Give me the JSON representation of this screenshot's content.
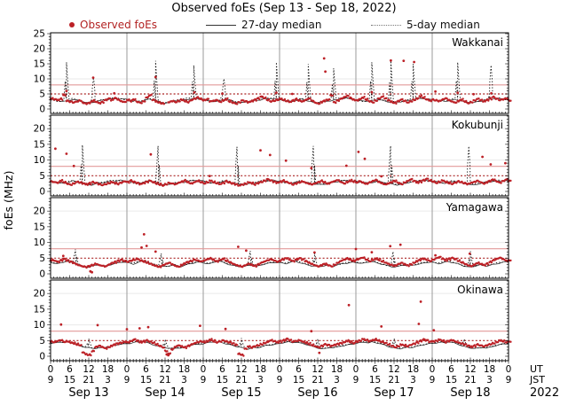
{
  "title": "Observed foEs (Sep 13 - Sep 18, 2022)",
  "ylabel": "foEs (MHz)",
  "legend": {
    "observed": "Observed foEs",
    "median27": "27-day median",
    "median5": "5-day median"
  },
  "axis": {
    "ut_row": [
      0,
      6,
      12,
      18
    ],
    "jst_row": [
      9,
      15,
      21,
      3
    ],
    "final_ut": 0,
    "final_jst": 9,
    "ut_label": "UT",
    "jst_label": "JST",
    "year": "2022",
    "days": [
      "Sep 13",
      "Sep 14",
      "Sep 15",
      "Sep 16",
      "Sep 17",
      "Sep 18"
    ],
    "hours_total": 144
  },
  "colors": {
    "observed": "#bc2026",
    "legend_observed_text": "#b22222",
    "median27": "#222222",
    "median5": "#111111",
    "threshold_solid": "#e39a9a",
    "threshold_dotted": "#aa2222",
    "day_grid": "#909090",
    "panel_border": "#000000",
    "grid_light": "#eaeaea"
  },
  "chart_data": {
    "type": "scatter",
    "x_unit": "hours UT from Sep 13 00:00",
    "x_range": [
      0,
      144
    ],
    "threshold_solid_mhz": 8,
    "threshold_dotted_mhz": 5,
    "panels": [
      {
        "station": "Wakkanai",
        "ylim": [
          0,
          25
        ],
        "yticks": [
          0,
          5,
          10,
          15,
          20,
          25
        ],
        "median27_daily": [
          3.2,
          3.0,
          2.8,
          2.6,
          2.5,
          2.7,
          3.0,
          3.2,
          3.0,
          2.7,
          2.4,
          2.2,
          2.1,
          2.2,
          2.4,
          2.6,
          2.8,
          3.0,
          3.1,
          3.3,
          3.4,
          3.5,
          3.4,
          3.3
        ],
        "median5_daily": [
          3.0,
          2.8,
          2.6,
          2.5,
          2.6,
          2.9,
          3.3,
          3.5,
          3.2,
          2.8,
          2.4,
          2.2,
          2.1,
          2.3,
          2.5,
          2.7,
          3.0,
          3.2,
          3.4,
          3.6,
          3.7,
          3.6,
          3.4,
          3.2
        ],
        "median5_spikes": [
          [
            5,
            15.5
          ],
          [
            13.5,
            10.5
          ],
          [
            33,
            16.0
          ],
          [
            45,
            14.5
          ],
          [
            54.5,
            10.0
          ],
          [
            71,
            15.5
          ],
          [
            81,
            15.0
          ],
          [
            89,
            13.5
          ],
          [
            101,
            15.5
          ],
          [
            107,
            16.0
          ],
          [
            114,
            15.0
          ],
          [
            128,
            15.5
          ],
          [
            138.5,
            14.5
          ]
        ],
        "observed_hourly": [
          3.4,
          3.1,
          2.9,
          3.3,
          4.6,
          2.6,
          2.3,
          2.1,
          2.5,
          2.9,
          2.2,
          1.9,
          2.1,
          2.7,
          2.4,
          2.0,
          2.3,
          2.9,
          3.3,
          2.8,
          3.5,
          3.1,
          2.6,
          2.4,
          3.0,
          2.7,
          3.2,
          2.5,
          2.2,
          2.6,
          3.8,
          4.4,
          2.9,
          2.4,
          2.1,
          1.8,
          null,
          2.2,
          2.6,
          2.4,
          2.8,
          3.2,
          2.7,
          2.3,
          2.9,
          3.4,
          3.8,
          3.3,
          2.8,
          3.1,
          2.4,
          2.7,
          3.0,
          2.5,
          2.9,
          3.3,
          2.6,
          2.2,
          1.9,
          2.3,
          2.8,
          2.4,
          2.1,
          2.5,
          3.0,
          3.5,
          4.1,
          3.6,
          3.0,
          2.6,
          2.9,
          3.2,
          3.5,
          3.0,
          2.6,
          2.3,
          2.8,
          3.2,
          2.7,
          2.4,
          2.9,
          3.4,
          2.8,
          2.2,
          1.9,
          2.4,
          2.8,
          3.1,
          4.6,
          2.3,
          2.8,
          3.3,
          3.7,
          4.2,
          3.6,
          3.1,
          2.9,
          3.3,
          3.8,
          3.2,
          2.7,
          2.4,
          2.9,
          3.5,
          4.0,
          3.4,
          2.8,
          2.3,
          2.0,
          2.5,
          3.0,
          2.6,
          2.2,
          2.7,
          3.2,
          3.6,
          4.3,
          3.8,
          3.2,
          2.8,
          3.1,
          2.8,
          2.5,
          3.0,
          3.4,
          2.9,
          2.5,
          2.2,
          2.7,
          3.1,
          2.6,
          2.1,
          2.4,
          2.9,
          3.3,
          2.8,
          2.4,
          2.9,
          3.4,
          3.9,
          3.3,
          2.9,
          3.2,
          3.6,
          3.0
        ],
        "observed_extra": [
          [
            5,
            6.0
          ],
          [
            13.4,
            10.4
          ],
          [
            20,
            5.2
          ],
          [
            33,
            10.6
          ],
          [
            45.2,
            5.5
          ],
          [
            54,
            5.1
          ],
          [
            71,
            5.4
          ],
          [
            76,
            5.0
          ],
          [
            86,
            16.8
          ],
          [
            86.4,
            12.4
          ],
          [
            101,
            5.6
          ],
          [
            107,
            16.1
          ],
          [
            111,
            16.0
          ],
          [
            114.3,
            15.6
          ],
          [
            121,
            5.8
          ],
          [
            128,
            5.4
          ],
          [
            133,
            4.9
          ],
          [
            138.6,
            5.2
          ]
        ]
      },
      {
        "station": "Kokubunji",
        "ylim": [
          0,
          24
        ],
        "yticks": [
          0,
          5,
          10,
          15,
          20
        ],
        "median27_daily": [
          3.3,
          3.1,
          2.9,
          2.7,
          2.6,
          2.8,
          3.1,
          3.3,
          3.1,
          2.8,
          2.5,
          2.3,
          2.2,
          2.1,
          2.3,
          2.5,
          2.7,
          2.9,
          3.0,
          3.2,
          3.3,
          3.4,
          3.5,
          3.4
        ],
        "median5_daily": [
          3.1,
          2.9,
          2.7,
          2.6,
          2.7,
          3.0,
          3.3,
          3.4,
          3.0,
          2.7,
          2.4,
          2.2,
          2.2,
          2.3,
          2.5,
          2.7,
          2.9,
          3.1,
          3.3,
          3.5,
          3.6,
          3.5,
          3.3,
          3.2
        ],
        "median5_spikes": [
          [
            10,
            14.8
          ],
          [
            33.8,
            14.5
          ],
          [
            58.6,
            14.2
          ],
          [
            82.6,
            14.5
          ],
          [
            106.9,
            14.5
          ],
          [
            131.5,
            14.4
          ]
        ],
        "observed_hourly": [
          3.2,
          3.0,
          2.8,
          3.4,
          3.0,
          2.6,
          2.3,
          2.6,
          3.0,
          2.7,
          2.4,
          2.2,
          2.5,
          2.9,
          2.6,
          2.2,
          2.0,
          2.4,
          2.8,
          3.1,
          2.7,
          2.4,
          2.8,
          3.2,
          3.0,
          3.4,
          2.9,
          2.5,
          2.2,
          2.6,
          3.1,
          3.5,
          3.0,
          2.6,
          2.3,
          2.0,
          2.4,
          2.8,
          2.5,
          2.2,
          2.6,
          3.0,
          3.4,
          2.9,
          2.5,
          2.9,
          3.3,
          3.0,
          2.7,
          3.1,
          3.5,
          3.0,
          2.6,
          2.3,
          2.7,
          3.2,
          2.8,
          2.4,
          2.1,
          1.8,
          2.2,
          2.6,
          3.0,
          2.7,
          2.3,
          2.7,
          3.1,
          3.5,
          3.9,
          3.4,
          2.9,
          2.6,
          3.0,
          3.4,
          3.0,
          2.6,
          2.2,
          2.6,
          3.0,
          3.3,
          2.9,
          2.5,
          2.2,
          2.5,
          2.9,
          3.3,
          2.8,
          2.4,
          2.8,
          3.2,
          3.6,
          3.1,
          2.7,
          3.1,
          3.5,
          3.2,
          2.9,
          3.3,
          2.8,
          2.4,
          2.7,
          3.1,
          3.5,
          3.0,
          2.6,
          2.3,
          2.6,
          3.0,
          3.4,
          2.9,
          2.5,
          2.9,
          3.3,
          3.7,
          3.2,
          2.8,
          3.1,
          3.5,
          3.9,
          3.4,
          3.1,
          2.8,
          3.2,
          3.6,
          3.1,
          2.7,
          2.4,
          2.8,
          3.2,
          2.9,
          2.5,
          2.2,
          2.6,
          3.0,
          3.4,
          3.0,
          2.6,
          3.0,
          3.4,
          3.8,
          3.3,
          2.9,
          3.3,
          3.7,
          3.2
        ],
        "observed_extra": [
          [
            1.5,
            13.6
          ],
          [
            5,
            12.0
          ],
          [
            7.3,
            8.1
          ],
          [
            31.5,
            11.8
          ],
          [
            50,
            4.9
          ],
          [
            66,
            13.1
          ],
          [
            69,
            11.6
          ],
          [
            74,
            9.8
          ],
          [
            82,
            7.4
          ],
          [
            93,
            8.2
          ],
          [
            96.8,
            12.6
          ],
          [
            98.8,
            10.4
          ],
          [
            104,
            4.8
          ],
          [
            135.8,
            11.0
          ],
          [
            138.4,
            8.6
          ],
          [
            143,
            9.0
          ]
        ]
      },
      {
        "station": "Yamagawa",
        "ylim": [
          0,
          24
        ],
        "yticks": [
          0,
          5,
          10,
          15,
          20
        ],
        "median27_daily": [
          3.6,
          3.4,
          3.2,
          3.5,
          3.8,
          4.0,
          3.7,
          3.4,
          3.1,
          2.8,
          2.5,
          2.3,
          2.2,
          2.4,
          2.6,
          2.8,
          2.6,
          2.4,
          2.7,
          3.0,
          3.2,
          3.4,
          3.6,
          3.7
        ],
        "median5_daily": [
          3.8,
          3.6,
          3.4,
          3.7,
          4.0,
          4.2,
          3.9,
          3.6,
          3.2,
          2.9,
          2.6,
          2.4,
          2.3,
          2.5,
          2.7,
          2.9,
          2.7,
          2.5,
          2.8,
          3.1,
          3.4,
          3.6,
          3.8,
          3.9
        ],
        "median5_spikes": [
          [
            7.8,
            7.8
          ],
          [
            34.8,
            6.5
          ],
          [
            62.8,
            7.3
          ],
          [
            83,
            6.6
          ],
          [
            107.7,
            7.1
          ],
          [
            132,
            7.2
          ]
        ],
        "observed_hourly": [
          4.4,
          4.2,
          3.9,
          4.3,
          4.6,
          4.1,
          3.7,
          3.4,
          3.0,
          2.7,
          2.4,
          2.2,
          2.5,
          2.9,
          3.3,
          2.9,
          2.6,
          2.3,
          2.8,
          3.3,
          3.7,
          4.1,
          4.4,
          4.0,
          3.8,
          4.2,
          4.6,
          4.9,
          4.4,
          4.0,
          3.6,
          3.2,
          2.8,
          2.5,
          2.2,
          2.6,
          3.0,
          3.4,
          3.0,
          2.6,
          2.4,
          2.9,
          3.4,
          3.8,
          4.2,
          4.6,
          4.3,
          3.9,
          4.1,
          4.5,
          4.8,
          4.4,
          4.0,
          4.4,
          4.7,
          4.2,
          3.8,
          3.4,
          3.0,
          2.6,
          2.3,
          2.7,
          3.1,
          2.8,
          2.5,
          2.9,
          3.4,
          3.8,
          4.3,
          4.7,
          4.4,
          4.0,
          4.3,
          4.7,
          5.0,
          4.5,
          4.1,
          4.5,
          4.8,
          4.4,
          3.9,
          3.5,
          3.1,
          2.7,
          2.4,
          2.8,
          3.2,
          2.9,
          2.6,
          3.0,
          3.5,
          4.0,
          4.4,
          4.8,
          4.5,
          4.1,
          4.4,
          4.8,
          5.1,
          4.6,
          4.2,
          4.6,
          4.9,
          4.5,
          4.0,
          3.6,
          3.2,
          2.8,
          2.5,
          2.9,
          3.3,
          3.0,
          2.7,
          3.1,
          3.6,
          4.1,
          4.5,
          4.9,
          4.6,
          4.2,
          4.5,
          4.9,
          5.2,
          4.7,
          4.3,
          4.7,
          5.0,
          4.6,
          4.1,
          3.7,
          3.3,
          2.9,
          2.6,
          3.0,
          3.4,
          3.1,
          2.8,
          3.2,
          3.7,
          4.2,
          4.6,
          5.0,
          4.7,
          4.3,
          4.4
        ],
        "observed_extra": [
          [
            4,
            5.7
          ],
          [
            12.5,
            0.8
          ],
          [
            13,
            0.5
          ],
          [
            28.6,
            8.4
          ],
          [
            29.4,
            12.6
          ],
          [
            30.2,
            8.9
          ],
          [
            33,
            7.1
          ],
          [
            59,
            8.6
          ],
          [
            61.5,
            7.4
          ],
          [
            83,
            6.8
          ],
          [
            96,
            7.9
          ],
          [
            101,
            6.9
          ],
          [
            106.8,
            8.8
          ],
          [
            110,
            9.3
          ],
          [
            121,
            5.9
          ],
          [
            131.8,
            6.4
          ]
        ]
      },
      {
        "station": "Okinawa",
        "ylim": [
          0,
          24
        ],
        "yticks": [
          0,
          5,
          10,
          15,
          20
        ],
        "median27_daily": [
          4.0,
          4.2,
          4.4,
          4.5,
          4.3,
          4.6,
          4.4,
          4.1,
          3.8,
          3.5,
          3.2,
          2.9,
          2.7,
          2.5,
          2.4,
          2.6,
          2.8,
          2.6,
          2.9,
          3.2,
          3.4,
          3.6,
          3.8,
          3.9
        ],
        "median5_daily": [
          4.2,
          4.4,
          4.6,
          4.7,
          4.5,
          4.8,
          4.6,
          4.3,
          4.0,
          3.7,
          3.3,
          3.0,
          2.8,
          2.6,
          2.5,
          2.7,
          2.9,
          2.7,
          3.0,
          3.3,
          3.5,
          3.7,
          3.9,
          4.1
        ],
        "median5_spikes": [
          [
            12,
            5.6
          ],
          [
            36,
            5.4
          ],
          [
            60,
            5.8
          ],
          [
            84,
            5.5
          ],
          [
            108,
            5.7
          ],
          [
            130,
            5.5
          ]
        ],
        "observed_hourly": [
          4.6,
          4.4,
          4.8,
          5.1,
          4.7,
          4.9,
          4.5,
          4.2,
          3.8,
          3.5,
          1.2,
          0.6,
          0.4,
          1.5,
          2.8,
          3.2,
          2.9,
          2.6,
          3.0,
          3.4,
          3.8,
          4.1,
          4.4,
          4.7,
          4.5,
          4.8,
          5.2,
          4.8,
          4.4,
          4.7,
          5.0,
          4.6,
          4.2,
          3.8,
          3.4,
          3.0,
          1.8,
          0.9,
          2.2,
          3.0,
          3.4,
          3.1,
          2.8,
          3.2,
          3.6,
          4.0,
          4.4,
          4.8,
          4.6,
          4.9,
          5.3,
          4.9,
          4.5,
          4.8,
          5.1,
          4.7,
          4.3,
          3.9,
          3.5,
          0.7,
          0.4,
          2.4,
          3.1,
          2.8,
          3.2,
          3.6,
          4.0,
          4.3,
          4.6,
          5.0,
          4.7,
          4.4,
          4.7,
          5.0,
          5.4,
          5.0,
          4.6,
          4.9,
          5.2,
          4.8,
          4.4,
          4.0,
          3.6,
          3.2,
          2.9,
          3.3,
          3.7,
          3.4,
          3.1,
          3.5,
          3.9,
          4.2,
          4.5,
          4.9,
          4.6,
          4.3,
          4.8,
          5.1,
          5.5,
          5.1,
          4.7,
          5.0,
          5.3,
          4.9,
          4.5,
          4.1,
          3.7,
          3.3,
          3.0,
          3.4,
          3.8,
          3.5,
          3.2,
          3.6,
          4.0,
          4.4,
          4.8,
          5.2,
          4.9,
          4.5,
          4.7,
          5.0,
          5.4,
          5.0,
          4.6,
          4.9,
          5.2,
          4.8,
          4.4,
          4.0,
          3.6,
          3.2,
          2.9,
          3.3,
          3.7,
          3.4,
          3.1,
          3.5,
          3.9,
          4.3,
          4.7,
          5.1,
          4.8,
          4.4,
          4.6
        ],
        "observed_extra": [
          [
            3.3,
            10.1
          ],
          [
            14.8,
            9.9
          ],
          [
            24,
            8.6
          ],
          [
            28,
            8.9
          ],
          [
            30.7,
            9.3
          ],
          [
            36.5,
            0.6
          ],
          [
            37,
            0.3
          ],
          [
            47,
            9.7
          ],
          [
            55,
            8.7
          ],
          [
            82,
            8.0
          ],
          [
            84.5,
            1.1
          ],
          [
            93.8,
            16.3
          ],
          [
            104,
            9.5
          ],
          [
            115.8,
            10.3
          ],
          [
            116.4,
            17.4
          ],
          [
            120.5,
            8.3
          ]
        ]
      }
    ]
  }
}
